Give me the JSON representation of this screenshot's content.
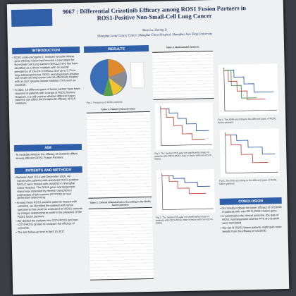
{
  "header": {
    "title": "9067 : Differential Crizotinib Efficacy among ROS1 Fusion Partners in ROS1-Positive Non-Small-Cell Lung Cancer",
    "authors": "Shun Lu, Ziming Li",
    "affiliation": "Shanghai Lung Cancer Center, Shanghai Chest Hospital, Shanghai Jiao Tong University"
  },
  "sections": {
    "introduction": {
      "heading": "INTRODUCTION",
      "bullets": [
        "ROS1 proto-oncogene 1, receptor tyrosine kinase gene (ROS1) fusion has become a new target for Non-small Cell Lung Cancer (NSCLC) and has been identified as a driver mutation with an overall prevalence of 1%-2% in NSCLC and up to 5.7% in lung adenocarcinoma. ROS1 rearrangement-positive non-small-cell lung cancer can be effectively treated with an ALK tyrosine kinase inhibitor (TKI) such as crizotinib.",
        "To date, 18 different types of fusion partner have been reported in patients with a range of ROS1 fusions. However, it is still unclear whether different fusion partners can affect the therapeutic efficacy of ALK inhibitors."
      ]
    },
    "aim": {
      "heading": "AIM",
      "text": "To evaluate whether the efficacy of crizotinib differs among different ROS1 Fusion Partners."
    },
    "methods": {
      "heading": "PATIENTS AND METHODS",
      "bullets": [
        "Between April 2014 and December 2016, 49 consecutive patients with advanced ROS1-positive NSCLC were treated with crizotinib in Shanghai Chest Hospital. The ROS1 gene rearrangement status was assessed by reverse transcription polymerase chain reaction (RT-PCR) or next generation sequencing.",
        "Among these ROS1-positive patients treated with crizotinib, we identified the patients with tumor specimens that could be evaluated for ROS1 variants by Sanger sequencing to confirm the presence of the ROS1 fusion partners.",
        "We divided the patients into CD74-ROS1 and non-CD74-ROS1 groups to compare the efficacy of crizotinib.",
        "The last follow-up time is April 15 2017"
      ]
    },
    "results": {
      "heading": "RESULTS"
    },
    "conclusion": {
      "heading": "CONCLUSION",
      "bullets": [
        "Our results indicate the lower efficacy of crizotinib in patients with non-CD74-ROS1 fusion gene.",
        "In combination the clinical outcome, the type of ROS1 rearrangement and the PFS of crizotinib were correlated.",
        "The CD74-ROS1 fusion patients might gain more benefit from the efficacy of crizotinib."
      ]
    }
  },
  "figures": {
    "fig1": "Fig 1. Frequency of ROS1 variants",
    "table1": "Table 1. Patient Characteristics",
    "table2": "Table 2. Clinical Characteristics According to the ROS1 fusion partners",
    "table3": "Table 3. Multivariable analysis",
    "fig2": "Fig 2. The median PFS was not significantly longer in patients with CD74-ROS1 than in those with non-CD74-ROS1",
    "fig3": "Fig 3. The median OS was not significantly longer in patients with CD74-ROS1 than in those with non-CD74-ROS1",
    "fig4": "Fig 4. The ORR according to the different types of ROS1 fusion partners",
    "fig5": "Fig 5. The PFS according to the different types of ROS1 fusion partners"
  }
}
